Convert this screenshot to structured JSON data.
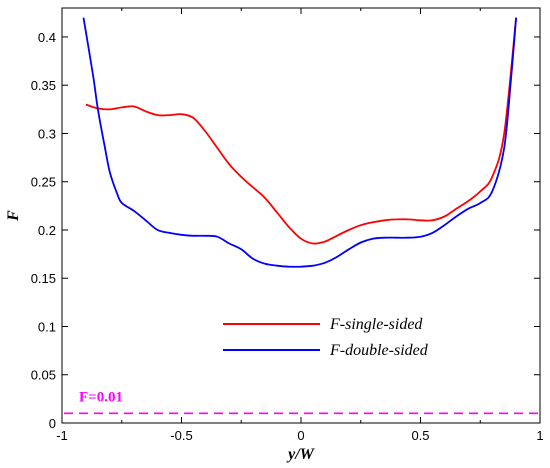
{
  "chart_data": {
    "type": "line",
    "xlabel": "y/W",
    "ylabel": "F",
    "xlim": [
      -1,
      1
    ],
    "ylim": [
      0,
      0.43
    ],
    "x_ticks": [
      -1,
      -0.5,
      0,
      0.5,
      1
    ],
    "x_tick_labels": [
      "-1",
      "-0.5",
      "0",
      "0.5",
      "1"
    ],
    "y_ticks": [
      0,
      0.05,
      0.1,
      0.15,
      0.2,
      0.25,
      0.3,
      0.35,
      0.4
    ],
    "y_tick_labels": [
      "0",
      "0.05",
      "0.1",
      "0.15",
      "0.2",
      "0.25",
      "0.3",
      "0.35",
      "0.4"
    ],
    "legend_position": "lower-center",
    "series": [
      {
        "name": "F-single-sided",
        "color": "#ff0000",
        "x": [
          -0.9,
          -0.85,
          -0.8,
          -0.75,
          -0.7,
          -0.65,
          -0.6,
          -0.55,
          -0.5,
          -0.45,
          -0.4,
          -0.35,
          -0.3,
          -0.25,
          -0.2,
          -0.15,
          -0.1,
          -0.05,
          0,
          0.05,
          0.1,
          0.15,
          0.2,
          0.25,
          0.3,
          0.35,
          0.4,
          0.45,
          0.5,
          0.55,
          0.6,
          0.65,
          0.7,
          0.75,
          0.8,
          0.85,
          0.9
        ],
        "y": [
          0.33,
          0.326,
          0.325,
          0.327,
          0.328,
          0.323,
          0.319,
          0.319,
          0.32,
          0.316,
          0.302,
          0.285,
          0.268,
          0.255,
          0.244,
          0.233,
          0.218,
          0.203,
          0.191,
          0.186,
          0.188,
          0.194,
          0.2,
          0.205,
          0.208,
          0.21,
          0.211,
          0.211,
          0.21,
          0.21,
          0.214,
          0.222,
          0.23,
          0.24,
          0.255,
          0.3,
          0.42
        ]
      },
      {
        "name": "F-double-sided",
        "color": "#0000ff",
        "x": [
          -0.91,
          -0.87,
          -0.85,
          -0.82,
          -0.8,
          -0.77,
          -0.75,
          -0.7,
          -0.65,
          -0.6,
          -0.55,
          -0.5,
          -0.45,
          -0.4,
          -0.35,
          -0.3,
          -0.25,
          -0.2,
          -0.15,
          -0.1,
          -0.05,
          0,
          0.05,
          0.1,
          0.15,
          0.2,
          0.25,
          0.3,
          0.35,
          0.4,
          0.45,
          0.5,
          0.55,
          0.6,
          0.65,
          0.7,
          0.75,
          0.8,
          0.85,
          0.88,
          0.9
        ],
        "y": [
          0.42,
          0.36,
          0.325,
          0.285,
          0.26,
          0.238,
          0.228,
          0.22,
          0.21,
          0.2,
          0.197,
          0.195,
          0.194,
          0.194,
          0.193,
          0.186,
          0.18,
          0.17,
          0.165,
          0.163,
          0.162,
          0.162,
          0.163,
          0.166,
          0.172,
          0.18,
          0.187,
          0.191,
          0.192,
          0.192,
          0.192,
          0.193,
          0.197,
          0.205,
          0.214,
          0.222,
          0.228,
          0.24,
          0.285,
          0.36,
          0.42
        ]
      }
    ],
    "reference_line": {
      "label": "F=0.01",
      "y": 0.01,
      "color": "#ff00ff",
      "style": "dashed"
    }
  }
}
